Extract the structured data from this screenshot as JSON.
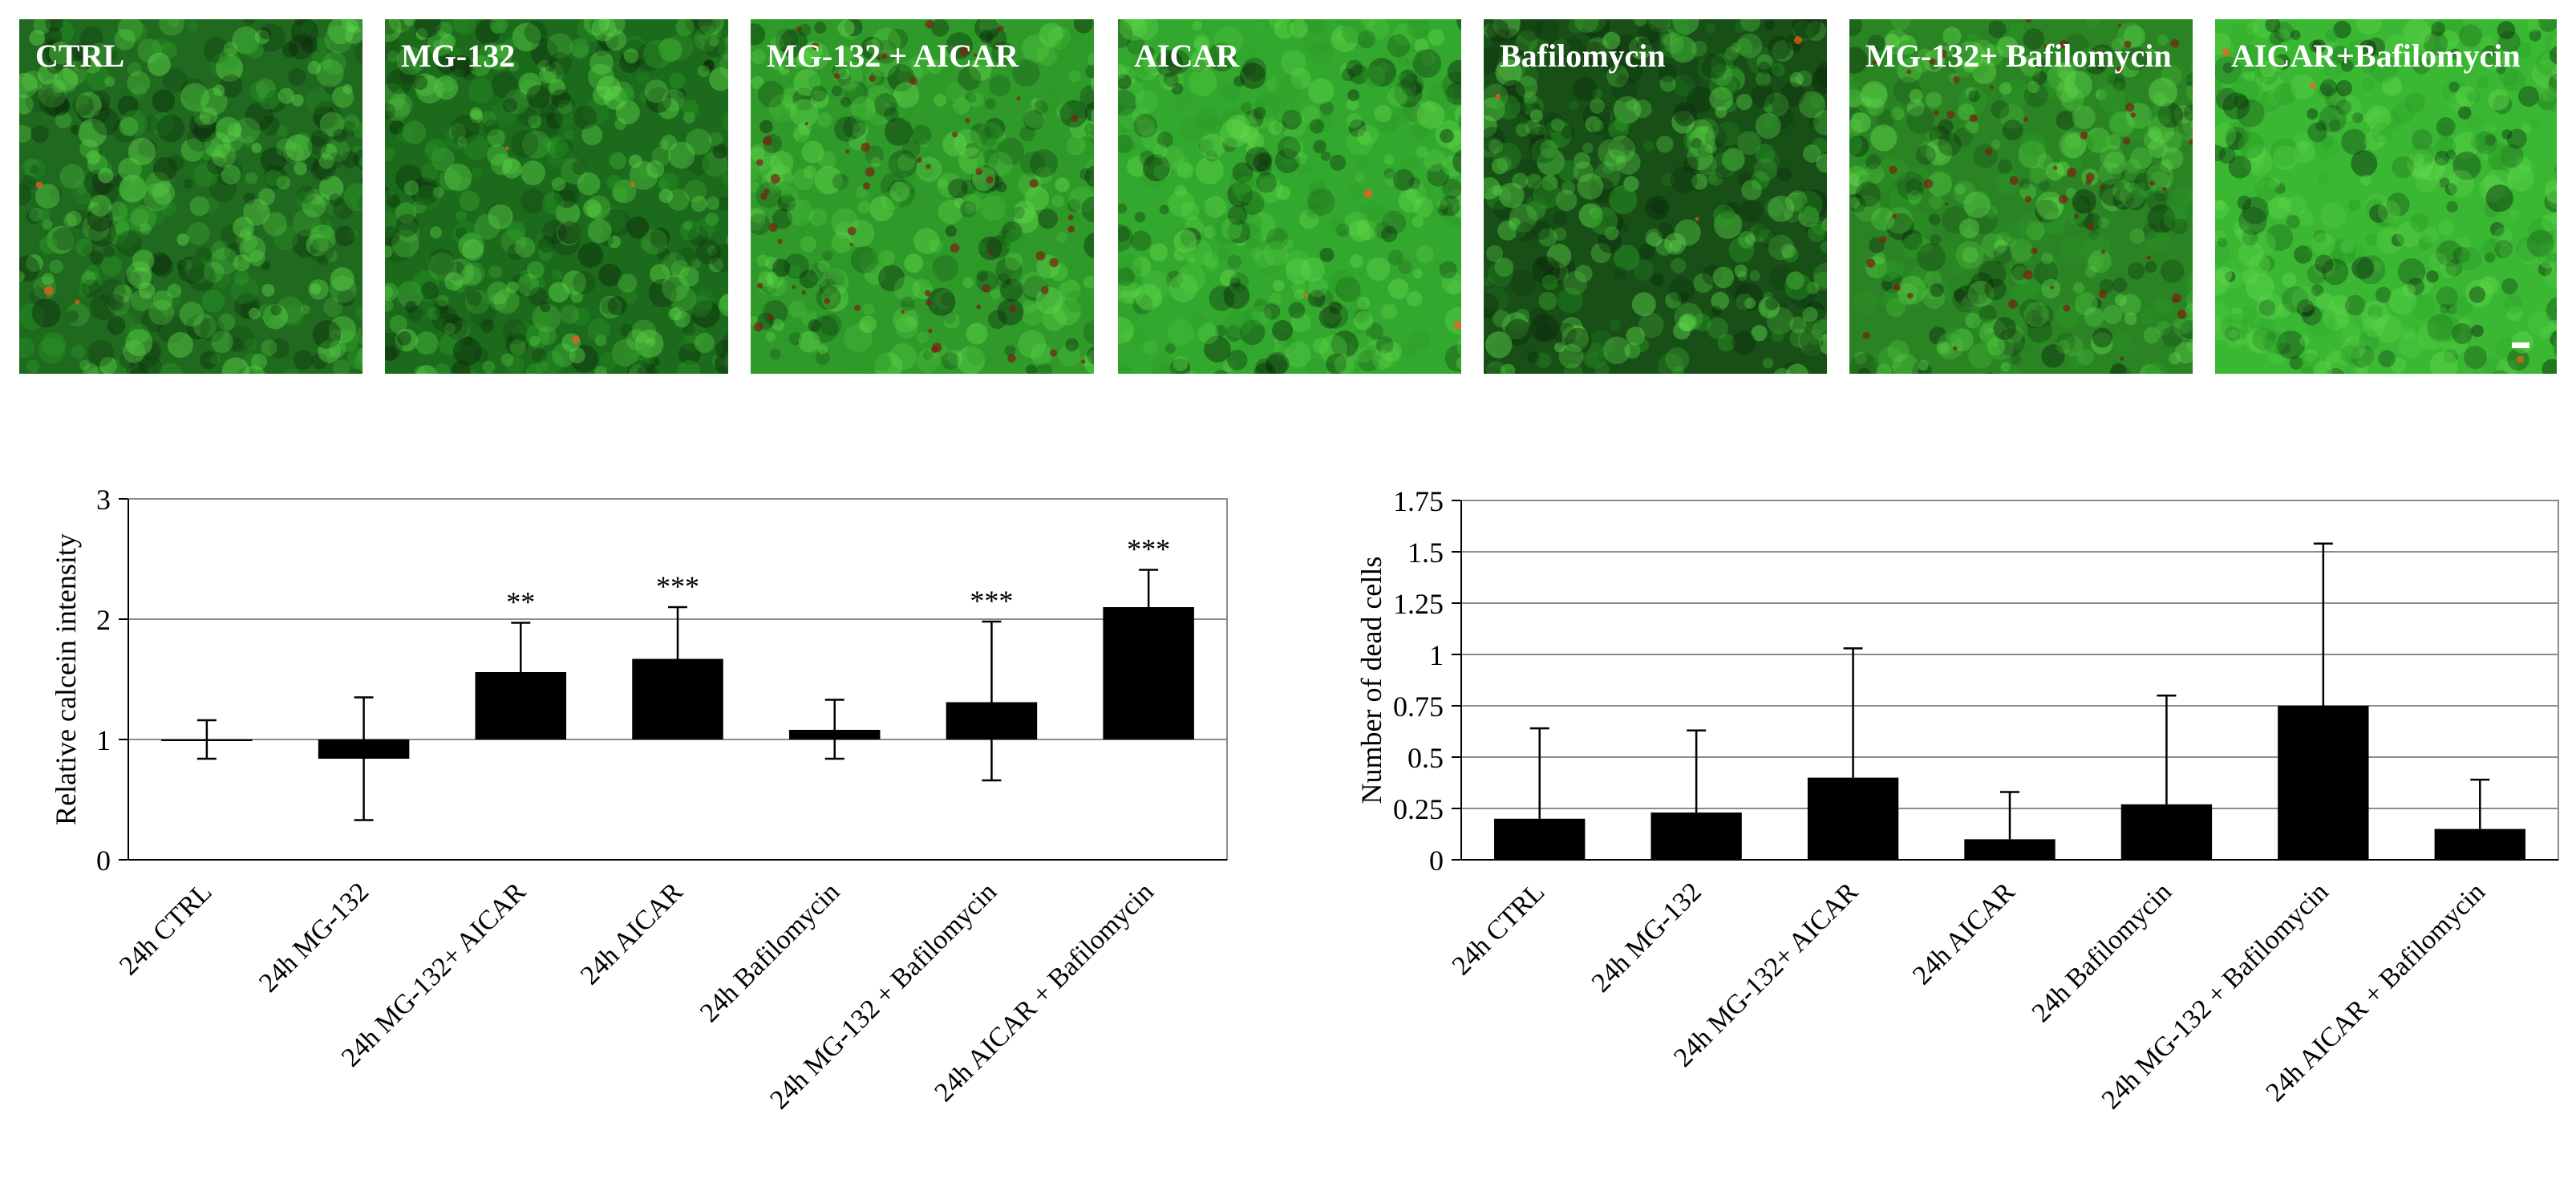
{
  "panels": [
    {
      "label": "CTRL",
      "tint": "#1f6a1f"
    },
    {
      "label": "MG-132",
      "tint": "#1c6b1c"
    },
    {
      "label": "MG-132 + AICAR",
      "tint": "#2f9a2a"
    },
    {
      "label": "AICAR",
      "tint": "#33a82e"
    },
    {
      "label": "Bafilomycin",
      "tint": "#174f17"
    },
    {
      "label": "MG-132+ Bafilomycin",
      "tint": "#2a8424"
    },
    {
      "label": "AICAR+Bafilomycin",
      "tint": "#3ab834"
    }
  ],
  "chart_data": [
    {
      "type": "bar",
      "ylabel": "Relative calcein intensity",
      "ylim": [
        0,
        3
      ],
      "yticks": [
        0,
        1,
        2,
        3
      ],
      "baseline": 1,
      "categories": [
        "24h CTRL",
        "24h MG-132",
        "24h MG-132+ AICAR",
        "24h AICAR",
        "24h Bafilomycin",
        "24h MG-132 + Bafilomycin",
        "24h AICAR + Bafilomycin"
      ],
      "values": [
        1.0,
        0.84,
        1.56,
        1.67,
        1.08,
        1.31,
        2.1
      ],
      "error_upper": [
        1.16,
        1.35,
        1.97,
        2.1,
        1.33,
        1.98,
        2.41
      ],
      "error_lower": [
        0.84,
        0.33,
        null,
        null,
        0.84,
        0.66,
        null
      ],
      "significance": [
        "",
        "",
        "**",
        "***",
        "",
        "***",
        "***"
      ],
      "grid": true,
      "legend": "none"
    },
    {
      "type": "bar",
      "ylabel": "Number of dead cells",
      "ylim": [
        0,
        1.75
      ],
      "yticks": [
        "0",
        "0.25",
        "0.5",
        "0.75",
        "1",
        "1.25",
        "1.5",
        "1.75"
      ],
      "categories": [
        "24h CTRL",
        "24h MG-132",
        "24h MG-132+ AICAR",
        "24h AICAR",
        "24h Bafilomycin",
        "24h MG-132 + Bafilomycin",
        "24h AICAR + Bafilomycin"
      ],
      "values": [
        0.2,
        0.23,
        0.4,
        0.1,
        0.27,
        0.75,
        0.15
      ],
      "error_upper": [
        0.64,
        0.63,
        1.03,
        0.33,
        0.8,
        1.54,
        0.39
      ],
      "grid": true,
      "legend": "none"
    }
  ]
}
